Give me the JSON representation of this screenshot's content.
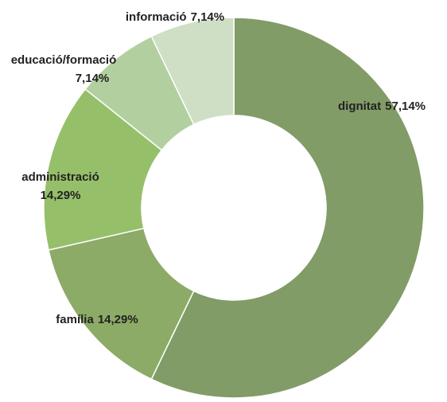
{
  "chart_data": {
    "type": "donut",
    "categories": [
      "dignitat",
      "família",
      "administració",
      "educació/formació",
      "informació"
    ],
    "values": [
      57.14,
      14.29,
      14.29,
      7.14,
      7.14
    ],
    "value_labels": [
      "57,14%",
      "14,29%",
      "14,29%",
      "7,14%",
      "7,14%"
    ],
    "colors": [
      "#819c67",
      "#8cab66",
      "#96bf6a",
      "#b2cfa0",
      "#cfdfc5"
    ]
  }
}
